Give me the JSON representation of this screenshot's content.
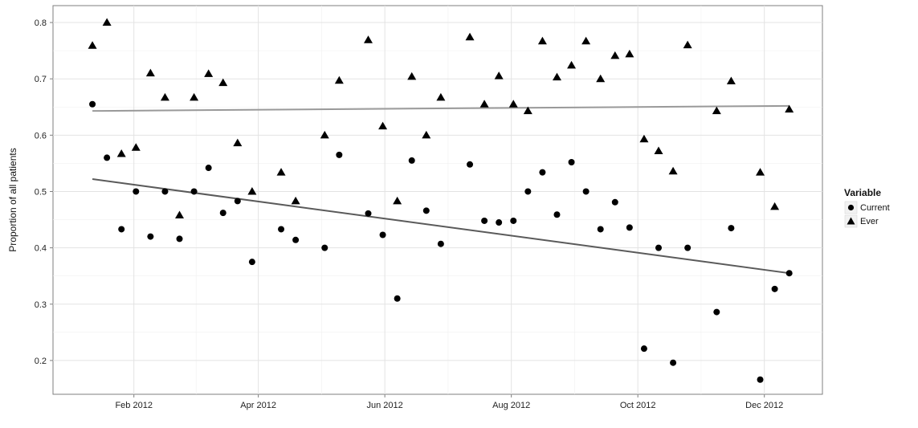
{
  "chart_data": {
    "type": "scatter",
    "title": "",
    "xlabel": "",
    "ylabel": "Proportion of all patients",
    "x_ticks": [
      "2012-02-01",
      "2012-04-01",
      "2012-06-01",
      "2012-08-01",
      "2012-10-01",
      "2012-12-01"
    ],
    "x_tick_labels": [
      "Feb 2012",
      "Apr 2012",
      "Jun 2012",
      "Aug 2012",
      "Oct 2012",
      "Dec 2012"
    ],
    "y_ticks": [
      0.2,
      0.3,
      0.4,
      0.5,
      0.6,
      0.7,
      0.8
    ],
    "y_tick_labels": [
      "0.2",
      "0.3",
      "0.4",
      "0.5",
      "0.6",
      "0.7",
      "0.8"
    ],
    "xlim": [
      "2011-12-24",
      "2012-12-29"
    ],
    "ylim": [
      0.14,
      0.83
    ],
    "grid": true,
    "legend": {
      "title": "Variable",
      "position": "right"
    },
    "series": [
      {
        "name": "Current",
        "marker": "circle",
        "color": "#000000",
        "points": [
          [
            "2012-01-12",
            0.655
          ],
          [
            "2012-01-19",
            0.56
          ],
          [
            "2012-01-26",
            0.433
          ],
          [
            "2012-02-02",
            0.5
          ],
          [
            "2012-02-09",
            0.42
          ],
          [
            "2012-02-16",
            0.5
          ],
          [
            "2012-02-23",
            0.416
          ],
          [
            "2012-03-01",
            0.5
          ],
          [
            "2012-03-08",
            0.542
          ],
          [
            "2012-03-15",
            0.462
          ],
          [
            "2012-03-22",
            0.483
          ],
          [
            "2012-03-29",
            0.375
          ],
          [
            "2012-04-12",
            0.433
          ],
          [
            "2012-04-19",
            0.414
          ],
          [
            "2012-05-03",
            0.4
          ],
          [
            "2012-05-10",
            0.565
          ],
          [
            "2012-05-24",
            0.461
          ],
          [
            "2012-05-31",
            0.423
          ],
          [
            "2012-06-07",
            0.31
          ],
          [
            "2012-06-14",
            0.555
          ],
          [
            "2012-06-21",
            0.466
          ],
          [
            "2012-06-28",
            0.407
          ],
          [
            "2012-07-12",
            0.548
          ],
          [
            "2012-07-19",
            0.448
          ],
          [
            "2012-07-26",
            0.445
          ],
          [
            "2012-08-02",
            0.448
          ],
          [
            "2012-08-09",
            0.5
          ],
          [
            "2012-08-16",
            0.534
          ],
          [
            "2012-08-23",
            0.459
          ],
          [
            "2012-08-30",
            0.552
          ],
          [
            "2012-09-06",
            0.5
          ],
          [
            "2012-09-13",
            0.433
          ],
          [
            "2012-09-20",
            0.481
          ],
          [
            "2012-09-27",
            0.436
          ],
          [
            "2012-10-04",
            0.221
          ],
          [
            "2012-10-11",
            0.4
          ],
          [
            "2012-10-18",
            0.196
          ],
          [
            "2012-10-25",
            0.4
          ],
          [
            "2012-11-08",
            0.286
          ],
          [
            "2012-11-15",
            0.435
          ],
          [
            "2012-11-29",
            0.166
          ],
          [
            "2012-12-06",
            0.327
          ],
          [
            "2012-12-13",
            0.355
          ]
        ],
        "trend": [
          [
            "2012-01-12",
            0.522
          ],
          [
            "2012-12-13",
            0.355
          ]
        ]
      },
      {
        "name": "Ever",
        "marker": "triangle",
        "color": "#000000",
        "points": [
          [
            "2012-01-12",
            0.759
          ],
          [
            "2012-01-19",
            0.8
          ],
          [
            "2012-01-26",
            0.567
          ],
          [
            "2012-02-02",
            0.578
          ],
          [
            "2012-02-09",
            0.71
          ],
          [
            "2012-02-16",
            0.667
          ],
          [
            "2012-02-23",
            0.458
          ],
          [
            "2012-03-01",
            0.667
          ],
          [
            "2012-03-08",
            0.709
          ],
          [
            "2012-03-15",
            0.693
          ],
          [
            "2012-03-22",
            0.586
          ],
          [
            "2012-03-29",
            0.5
          ],
          [
            "2012-04-12",
            0.534
          ],
          [
            "2012-04-19",
            0.483
          ],
          [
            "2012-05-03",
            0.6
          ],
          [
            "2012-05-10",
            0.697
          ],
          [
            "2012-05-24",
            0.769
          ],
          [
            "2012-05-31",
            0.616
          ],
          [
            "2012-06-07",
            0.483
          ],
          [
            "2012-06-14",
            0.704
          ],
          [
            "2012-06-21",
            0.6
          ],
          [
            "2012-06-28",
            0.667
          ],
          [
            "2012-07-12",
            0.774
          ],
          [
            "2012-07-19",
            0.655
          ],
          [
            "2012-07-26",
            0.705
          ],
          [
            "2012-08-02",
            0.655
          ],
          [
            "2012-08-09",
            0.643
          ],
          [
            "2012-08-16",
            0.767
          ],
          [
            "2012-08-23",
            0.703
          ],
          [
            "2012-08-30",
            0.724
          ],
          [
            "2012-09-06",
            0.767
          ],
          [
            "2012-09-13",
            0.7
          ],
          [
            "2012-09-20",
            0.741
          ],
          [
            "2012-09-27",
            0.744
          ],
          [
            "2012-10-04",
            0.593
          ],
          [
            "2012-10-11",
            0.572
          ],
          [
            "2012-10-18",
            0.536
          ],
          [
            "2012-10-25",
            0.76
          ],
          [
            "2012-11-08",
            0.643
          ],
          [
            "2012-11-15",
            0.696
          ],
          [
            "2012-11-29",
            0.534
          ],
          [
            "2012-12-06",
            0.473
          ],
          [
            "2012-12-13",
            0.646
          ]
        ],
        "trend": [
          [
            "2012-01-12",
            0.643
          ],
          [
            "2012-12-13",
            0.652
          ]
        ]
      }
    ]
  }
}
